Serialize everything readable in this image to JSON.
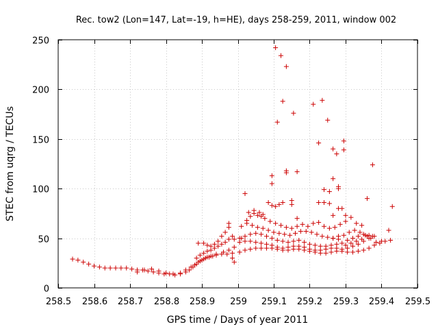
{
  "chart_data": {
    "type": "scatter",
    "title": "Rec. tow2 (Lon=147, Lat=-19, h=HE), days 258-259, 2011, window 002",
    "xlabel": "GPS time / Days of year 2011",
    "ylabel": "STEC from uqrg / TECUs",
    "xlim": [
      258.5,
      259.5
    ],
    "ylim": [
      0,
      250
    ],
    "xticks": [
      258.5,
      258.6,
      258.7,
      258.8,
      258.9,
      259.0,
      259.1,
      259.2,
      259.3,
      259.4,
      259.5
    ],
    "xtick_labels": [
      "258.5",
      "258.6",
      "258.7",
      "258.8",
      "258.9",
      "259",
      "259.1",
      "259.2",
      "259.3",
      "259.4",
      "259.5"
    ],
    "yticks": [
      0,
      50,
      100,
      150,
      200,
      250
    ],
    "ytick_labels": [
      "0",
      "50",
      "100",
      "150",
      "200",
      "250"
    ],
    "grid": true,
    "marker": "+",
    "color": "#cc0000",
    "series": [
      {
        "name": "STEC",
        "points": [
          [
            258.54,
            29
          ],
          [
            258.555,
            28
          ],
          [
            258.57,
            26
          ],
          [
            258.585,
            24
          ],
          [
            258.6,
            22
          ],
          [
            258.615,
            21
          ],
          [
            258.63,
            20
          ],
          [
            258.645,
            20
          ],
          [
            258.66,
            20
          ],
          [
            258.675,
            20
          ],
          [
            258.69,
            20
          ],
          [
            258.705,
            19
          ],
          [
            258.72,
            18
          ],
          [
            258.735,
            18
          ],
          [
            258.75,
            17
          ],
          [
            258.765,
            16
          ],
          [
            258.78,
            15
          ],
          [
            258.795,
            14
          ],
          [
            258.81,
            14
          ],
          [
            258.825,
            13
          ],
          [
            258.84,
            14
          ],
          [
            258.855,
            16
          ],
          [
            258.865,
            18
          ],
          [
            258.875,
            21
          ],
          [
            258.885,
            24
          ],
          [
            258.895,
            27
          ],
          [
            258.905,
            29
          ],
          [
            258.915,
            31
          ],
          [
            258.925,
            32
          ],
          [
            258.94,
            33
          ],
          [
            258.955,
            34
          ],
          [
            258.97,
            34
          ],
          [
            258.985,
            35
          ],
          [
            258.72,
            16
          ],
          [
            258.74,
            18
          ],
          [
            258.76,
            19
          ],
          [
            258.78,
            17
          ],
          [
            258.8,
            15
          ],
          [
            258.82,
            14
          ],
          [
            258.84,
            15
          ],
          [
            258.855,
            18
          ],
          [
            258.87,
            21
          ],
          [
            258.88,
            23
          ],
          [
            258.89,
            26
          ],
          [
            258.9,
            28
          ],
          [
            258.91,
            30
          ],
          [
            258.92,
            31
          ],
          [
            258.93,
            32
          ],
          [
            258.94,
            34
          ],
          [
            258.96,
            36
          ],
          [
            258.975,
            38
          ],
          [
            258.99,
            41
          ],
          [
            258.885,
            30
          ],
          [
            258.895,
            33
          ],
          [
            258.905,
            35
          ],
          [
            258.915,
            37
          ],
          [
            258.925,
            38
          ],
          [
            258.935,
            40
          ],
          [
            258.945,
            42
          ],
          [
            258.955,
            44
          ],
          [
            258.965,
            46
          ],
          [
            258.975,
            49
          ],
          [
            258.985,
            52
          ],
          [
            258.89,
            45
          ],
          [
            258.905,
            45
          ],
          [
            258.915,
            43
          ],
          [
            258.925,
            42
          ],
          [
            258.935,
            44
          ],
          [
            258.945,
            47
          ],
          [
            258.955,
            52
          ],
          [
            258.965,
            56
          ],
          [
            258.975,
            61
          ],
          [
            258.975,
            65
          ],
          [
            258.99,
            49
          ],
          [
            258.985,
            30
          ],
          [
            258.99,
            26
          ],
          [
            259.005,
            36
          ],
          [
            259.02,
            38
          ],
          [
            259.035,
            39
          ],
          [
            259.05,
            40
          ],
          [
            259.065,
            40
          ],
          [
            259.08,
            40
          ],
          [
            259.095,
            40
          ],
          [
            259.11,
            39
          ],
          [
            259.125,
            38
          ],
          [
            259.14,
            38
          ],
          [
            259.155,
            39
          ],
          [
            259.17,
            39
          ],
          [
            259.185,
            38
          ],
          [
            259.2,
            37
          ],
          [
            259.215,
            36
          ],
          [
            259.23,
            35
          ],
          [
            259.245,
            35
          ],
          [
            259.26,
            36
          ],
          [
            259.275,
            37
          ],
          [
            259.29,
            37
          ],
          [
            259.305,
            36
          ],
          [
            259.32,
            36
          ],
          [
            259.335,
            37
          ],
          [
            259.35,
            38
          ],
          [
            259.365,
            40
          ],
          [
            259.38,
            43
          ],
          [
            259.395,
            45
          ],
          [
            259.41,
            47
          ],
          [
            259.425,
            48
          ],
          [
            259.005,
            46
          ],
          [
            259.02,
            47
          ],
          [
            259.035,
            47
          ],
          [
            259.05,
            46
          ],
          [
            259.065,
            45
          ],
          [
            259.08,
            44
          ],
          [
            259.095,
            43
          ],
          [
            259.11,
            41
          ],
          [
            259.125,
            40
          ],
          [
            259.14,
            41
          ],
          [
            259.155,
            42
          ],
          [
            259.17,
            42
          ],
          [
            259.185,
            41
          ],
          [
            259.2,
            39
          ],
          [
            259.215,
            38
          ],
          [
            259.23,
            38
          ],
          [
            259.245,
            39
          ],
          [
            259.26,
            40
          ],
          [
            259.275,
            40
          ],
          [
            259.29,
            39
          ],
          [
            259.305,
            40
          ],
          [
            259.32,
            42
          ],
          [
            259.335,
            44
          ],
          [
            259.35,
            47
          ],
          [
            259.365,
            50
          ],
          [
            259.005,
            50
          ],
          [
            259.02,
            52
          ],
          [
            259.035,
            54
          ],
          [
            259.05,
            55
          ],
          [
            259.065,
            54
          ],
          [
            259.08,
            52
          ],
          [
            259.095,
            50
          ],
          [
            259.11,
            48
          ],
          [
            259.125,
            47
          ],
          [
            259.14,
            46
          ],
          [
            259.155,
            47
          ],
          [
            259.17,
            48
          ],
          [
            259.185,
            46
          ],
          [
            259.2,
            44
          ],
          [
            259.215,
            43
          ],
          [
            259.23,
            42
          ],
          [
            259.245,
            42
          ],
          [
            259.26,
            43
          ],
          [
            259.275,
            44
          ],
          [
            259.29,
            45
          ],
          [
            259.305,
            48
          ],
          [
            259.32,
            50
          ],
          [
            259.335,
            52
          ],
          [
            259.35,
            54
          ],
          [
            259.365,
            53
          ],
          [
            259.38,
            52
          ],
          [
            259.01,
            62
          ],
          [
            259.025,
            65
          ],
          [
            259.04,
            63
          ],
          [
            259.055,
            61
          ],
          [
            259.07,
            60
          ],
          [
            259.085,
            58
          ],
          [
            259.1,
            56
          ],
          [
            259.115,
            55
          ],
          [
            259.13,
            54
          ],
          [
            259.145,
            53
          ],
          [
            259.16,
            55
          ],
          [
            259.175,
            57
          ],
          [
            259.19,
            57
          ],
          [
            259.205,
            56
          ],
          [
            259.22,
            54
          ],
          [
            259.235,
            52
          ],
          [
            259.25,
            51
          ],
          [
            259.265,
            50
          ],
          [
            259.28,
            52
          ],
          [
            259.295,
            53
          ],
          [
            259.31,
            56
          ],
          [
            259.325,
            58
          ],
          [
            259.34,
            56
          ],
          [
            259.355,
            53
          ],
          [
            259.37,
            50
          ],
          [
            259.01,
            50
          ],
          [
            259.025,
            68
          ],
          [
            259.035,
            72
          ],
          [
            259.045,
            75
          ],
          [
            259.055,
            73
          ],
          [
            259.065,
            72
          ],
          [
            259.075,
            70
          ],
          [
            259.09,
            67
          ],
          [
            259.105,
            65
          ],
          [
            259.12,
            63
          ],
          [
            259.135,
            61
          ],
          [
            259.15,
            60
          ],
          [
            259.165,
            62
          ],
          [
            259.18,
            64
          ],
          [
            259.195,
            62
          ],
          [
            259.21,
            65
          ],
          [
            259.225,
            66
          ],
          [
            259.24,
            62
          ],
          [
            259.255,
            60
          ],
          [
            259.27,
            61
          ],
          [
            259.285,
            64
          ],
          [
            259.3,
            67
          ],
          [
            259.315,
            71
          ],
          [
            259.33,
            65
          ],
          [
            259.345,
            63
          ],
          [
            259.03,
            76
          ],
          [
            259.045,
            78
          ],
          [
            259.06,
            76
          ],
          [
            259.07,
            74
          ],
          [
            259.085,
            86
          ],
          [
            259.095,
            83
          ],
          [
            259.105,
            82
          ],
          [
            259.115,
            84
          ],
          [
            259.125,
            86
          ],
          [
            259.15,
            84
          ],
          [
            259.15,
            88
          ],
          [
            259.165,
            70
          ],
          [
            259.225,
            86
          ],
          [
            259.24,
            86
          ],
          [
            259.255,
            85
          ],
          [
            259.265,
            73
          ],
          [
            259.28,
            80
          ],
          [
            259.29,
            80
          ],
          [
            259.3,
            73
          ],
          [
            259.36,
            90
          ],
          [
            259.42,
            58
          ],
          [
            259.43,
            82
          ],
          [
            259.095,
            105
          ],
          [
            259.095,
            113
          ],
          [
            259.135,
            116
          ],
          [
            259.135,
            118
          ],
          [
            259.165,
            117
          ],
          [
            259.225,
            146
          ],
          [
            259.24,
            99
          ],
          [
            259.255,
            97
          ],
          [
            259.265,
            110
          ],
          [
            259.265,
            140
          ],
          [
            259.275,
            135
          ],
          [
            259.28,
            100
          ],
          [
            259.28,
            102
          ],
          [
            259.295,
            148
          ],
          [
            259.295,
            139
          ],
          [
            259.375,
            124
          ],
          [
            259.02,
            95
          ],
          [
            259.105,
            242
          ],
          [
            259.12,
            234
          ],
          [
            259.135,
            223
          ],
          [
            259.125,
            188
          ],
          [
            259.155,
            176
          ],
          [
            259.11,
            167
          ],
          [
            259.21,
            185
          ],
          [
            259.235,
            189
          ],
          [
            259.25,
            169
          ],
          [
            259.265,
            50
          ],
          [
            259.28,
            49
          ],
          [
            259.3,
            43
          ],
          [
            259.315,
            45
          ],
          [
            259.33,
            47
          ],
          [
            259.345,
            49
          ],
          [
            259.36,
            52
          ],
          [
            259.375,
            52
          ],
          [
            259.385,
            46
          ],
          [
            259.4,
            47
          ]
        ]
      }
    ]
  }
}
